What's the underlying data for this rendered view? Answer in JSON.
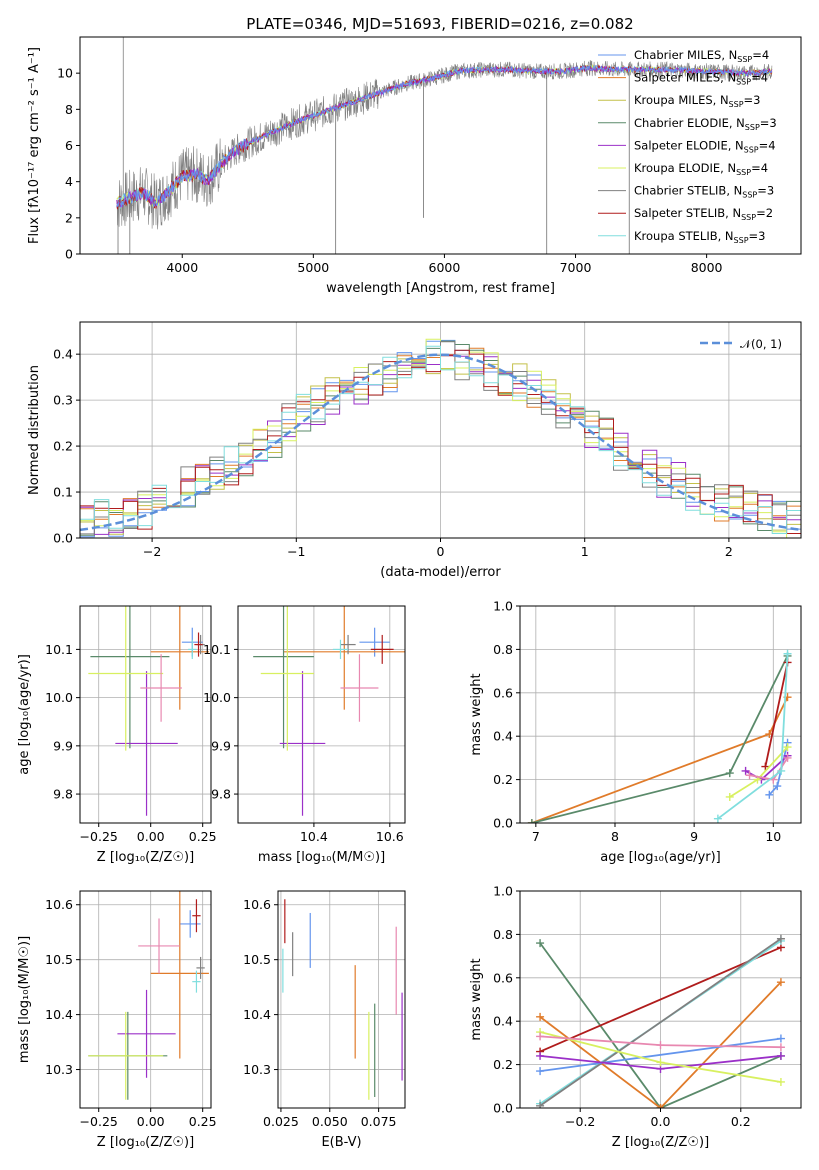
{
  "figure_title": "PLATE=0346, MJD=51693, FIBERID=0216, z=0.082",
  "colors": {
    "Chabrier MILES": "#6495ed",
    "Salpeter MILES": "#e07b2a",
    "Kroupa MILES": "#c4c04a",
    "Chabrier ELODIE": "#5a8a6a",
    "Salpeter ELODIE": "#9b30c8",
    "Kroupa ELODIE": "#d8f060",
    "Chabrier STELIB": "#808080",
    "Salpeter STELIB": "#b01c1c",
    "Kroupa STELIB": "#80dede",
    "data": "#808080",
    "pink": "#e888b0",
    "normal": "#5b8fd9"
  },
  "chart_data": [
    {
      "id": "spectrum",
      "type": "line",
      "title": "PLATE=0346, MJD=51693, FIBERID=0216, z=0.082",
      "xlabel": "wavelength [Angstrom, rest frame]",
      "ylabel": "Flux [fλ10⁻¹⁷ erg cm⁻² s⁻¹ A⁻¹]",
      "xlim": [
        3220,
        8720
      ],
      "ylim": [
        0,
        12
      ],
      "xticks": [
        "4000",
        "5000",
        "6000",
        "7000",
        "8000"
      ],
      "yticks": [
        "0",
        "2",
        "4",
        "6",
        "8",
        "10"
      ],
      "continuum": {
        "x": [
          3500,
          3600,
          3700,
          3800,
          3900,
          4000,
          4100,
          4200,
          4300,
          4400,
          4500,
          4700,
          4900,
          5100,
          5300,
          5500,
          5700,
          5900,
          6100,
          6300,
          6500,
          6700,
          6900,
          7100,
          7300,
          7450,
          7700,
          8000,
          8300,
          8500
        ],
        "y": [
          2.8,
          3.1,
          3.4,
          2.8,
          3.5,
          4.3,
          4.4,
          4.1,
          5.0,
          5.7,
          6.1,
          6.8,
          7.4,
          7.9,
          8.4,
          8.9,
          9.4,
          9.7,
          10.1,
          10.2,
          10.2,
          10.1,
          10.1,
          10.3,
          10.2,
          10.2,
          10.2,
          10.1,
          10.0,
          10.1
        ]
      },
      "legend": [
        {
          "name": "Chabrier MILES",
          "nssp": "4"
        },
        {
          "name": "Salpeter MILES",
          "nssp": "4"
        },
        {
          "name": "Kroupa MILES",
          "nssp": "3"
        },
        {
          "name": "Chabrier ELODIE",
          "nssp": "3"
        },
        {
          "name": "Salpeter ELODIE",
          "nssp": "4"
        },
        {
          "name": "Kroupa ELODIE",
          "nssp": "4"
        },
        {
          "name": "Chabrier STELIB",
          "nssp": "3"
        },
        {
          "name": "Salpeter STELIB",
          "nssp": "2"
        },
        {
          "name": "Kroupa STELIB",
          "nssp": "3"
        }
      ],
      "legend_label_suffix": ", N",
      "legend_label_sub": "SSP",
      "legend_label_eq": "=",
      "legend_placement": "upper-right"
    },
    {
      "id": "residuals",
      "type": "histogram",
      "xlabel": "(data-model)/error",
      "ylabel": "Normed distribution",
      "xlim": [
        -2.5,
        2.5
      ],
      "ylim": [
        0,
        0.47
      ],
      "xticks": [
        "−2",
        "−1",
        "0",
        "1",
        "2"
      ],
      "yticks": [
        "0.0",
        "0.1",
        "0.2",
        "0.3",
        "0.4"
      ],
      "bin_width": 0.1,
      "envelope": [
        0.03,
        0.04,
        0.04,
        0.05,
        0.06,
        0.07,
        0.09,
        0.11,
        0.12,
        0.14,
        0.16,
        0.18,
        0.21,
        0.22,
        0.25,
        0.27,
        0.29,
        0.31,
        0.32,
        0.33,
        0.35,
        0.36,
        0.38,
        0.39,
        0.4,
        0.39,
        0.38,
        0.37,
        0.36,
        0.35,
        0.34,
        0.32,
        0.3,
        0.28,
        0.26,
        0.24,
        0.22,
        0.19,
        0.17,
        0.15,
        0.13,
        0.12,
        0.1,
        0.09,
        0.08,
        0.07,
        0.06,
        0.05,
        0.04,
        0.035
      ],
      "gaussian_label": "𝒩(0, 1)",
      "grid": true
    },
    {
      "id": "age_vs_Z",
      "type": "errorbar",
      "xlabel": "Z [log₁₀(Z/Z☉)]",
      "ylabel": "age  [log₁₀(age/yr)]",
      "xlim": [
        -0.34,
        0.29
      ],
      "ylim": [
        9.74,
        10.19
      ],
      "xticks": [
        "−0.25",
        "0.00",
        "0.25"
      ],
      "yticks": [
        "9.8",
        "9.9",
        "10.0",
        "10.1"
      ],
      "points": [
        {
          "c": "Chabrier MILES",
          "x": 0.2,
          "xe": 0.05,
          "y": 10.115,
          "ye": 0.03
        },
        {
          "c": "Salpeter MILES",
          "x": 0.14,
          "xe": 0.14,
          "y": 10.095,
          "ye": 0.12
        },
        {
          "c": "Chabrier ELODIE",
          "x": -0.1,
          "xe": 0.19,
          "y": 10.085,
          "ye": 0.19
        },
        {
          "c": "Salpeter ELODIE",
          "x": -0.02,
          "xe": 0.15,
          "y": 9.905,
          "ye": 0.15
        },
        {
          "c": "Kroupa ELODIE",
          "x": -0.12,
          "xe": 0.18,
          "y": 10.05,
          "ye": 0.16
        },
        {
          "c": "Chabrier STELIB",
          "x": 0.24,
          "xe": 0.02,
          "y": 10.11,
          "ye": 0.02
        },
        {
          "c": "Salpeter STELIB",
          "x": 0.23,
          "xe": 0.02,
          "y": 10.11,
          "ye": 0.025
        },
        {
          "c": "Kroupa STELIB",
          "x": 0.2,
          "xe": 0.02,
          "y": 10.1,
          "ye": 0.02
        },
        {
          "c": "pink",
          "x": 0.05,
          "xe": 0.1,
          "y": 10.02,
          "ye": 0.07
        }
      ]
    },
    {
      "id": "age_vs_mass",
      "type": "errorbar",
      "xlabel": "mass [log₁₀(M/M☉)]",
      "ylabel": "",
      "xlim": [
        10.2,
        10.64
      ],
      "ylim": [
        9.74,
        10.19
      ],
      "xticks": [
        "10.4",
        "10.6"
      ],
      "yticks": [
        "9.8",
        "9.9",
        "10.0",
        "10.1"
      ],
      "points": [
        {
          "c": "Chabrier MILES",
          "x": 10.56,
          "xe": 0.04,
          "y": 10.115,
          "ye": 0.03
        },
        {
          "c": "Salpeter MILES",
          "x": 10.48,
          "xe": 0.16,
          "y": 10.095,
          "ye": 0.12
        },
        {
          "c": "Chabrier ELODIE",
          "x": 10.32,
          "xe": 0.08,
          "y": 10.085,
          "ye": 0.19
        },
        {
          "c": "Salpeter ELODIE",
          "x": 10.37,
          "xe": 0.06,
          "y": 9.905,
          "ye": 0.15
        },
        {
          "c": "Kroupa ELODIE",
          "x": 10.33,
          "xe": 0.07,
          "y": 10.05,
          "ye": 0.16
        },
        {
          "c": "Chabrier STELIB",
          "x": 10.49,
          "xe": 0.02,
          "y": 10.11,
          "ye": 0.02
        },
        {
          "c": "Salpeter STELIB",
          "x": 10.58,
          "xe": 0.03,
          "y": 10.1,
          "ye": 0.03
        },
        {
          "c": "Kroupa STELIB",
          "x": 10.47,
          "xe": 0.02,
          "y": 10.1,
          "ye": 0.02
        },
        {
          "c": "pink",
          "x": 10.52,
          "xe": 0.05,
          "y": 10.02,
          "ye": 0.07
        }
      ]
    },
    {
      "id": "weight_vs_age",
      "type": "line",
      "xlabel": "age  [log₁₀(age/yr)]",
      "ylabel": "mass weight",
      "xlim": [
        6.8,
        10.35
      ],
      "ylim": [
        0,
        1
      ],
      "xticks": [
        "7",
        "8",
        "9",
        "10"
      ],
      "yticks": [
        "0.0",
        "0.2",
        "0.4",
        "0.6",
        "0.8",
        "1.0"
      ],
      "series": [
        {
          "c": "Salpeter MILES",
          "x": [
            6.95,
            9.95,
            10.18
          ],
          "y": [
            0.0,
            0.41,
            0.58
          ]
        },
        {
          "c": "Chabrier ELODIE",
          "x": [
            6.95,
            9.45,
            10.18
          ],
          "y": [
            0.0,
            0.23,
            0.77
          ]
        },
        {
          "c": "Salpeter STELIB",
          "x": [
            9.9,
            10.18
          ],
          "y": [
            0.26,
            0.74
          ]
        },
        {
          "c": "Chabrier MILES",
          "x": [
            9.95,
            10.05,
            10.18
          ],
          "y": [
            0.13,
            0.17,
            0.37
          ]
        },
        {
          "c": "Salpeter ELODIE",
          "x": [
            9.65,
            9.85,
            10.18
          ],
          "y": [
            0.24,
            0.2,
            0.31
          ]
        },
        {
          "c": "Kroupa ELODIE",
          "x": [
            9.45,
            9.8,
            10.18
          ],
          "y": [
            0.12,
            0.2,
            0.35
          ]
        },
        {
          "c": "pink",
          "x": [
            9.7,
            10.0,
            10.18
          ],
          "y": [
            0.22,
            0.2,
            0.3
          ]
        },
        {
          "c": "Kroupa STELIB",
          "x": [
            9.3,
            10.1,
            10.18
          ],
          "y": [
            0.02,
            0.24,
            0.78
          ]
        }
      ]
    },
    {
      "id": "mass_vs_Z",
      "type": "errorbar",
      "xlabel": "Z [log₁₀(Z/Z☉)]",
      "ylabel": "mass [log₁₀(M/M☉)]",
      "xlim": [
        -0.34,
        0.29
      ],
      "ylim": [
        10.23,
        10.625
      ],
      "xticks": [
        "−0.25",
        "0.00",
        "0.25"
      ],
      "yticks": [
        "10.3",
        "10.4",
        "10.5",
        "10.6"
      ],
      "points": [
        {
          "c": "Chabrier MILES",
          "x": 0.19,
          "xe": 0.05,
          "y": 10.565,
          "ye": 0.025
        },
        {
          "c": "Salpeter MILES",
          "x": 0.14,
          "xe": 0.14,
          "y": 10.475,
          "ye": 0.155
        },
        {
          "c": "Chabrier ELODIE",
          "x": -0.11,
          "xe": 0.19,
          "y": 10.325,
          "ye": 0.08
        },
        {
          "c": "Salpeter ELODIE",
          "x": -0.02,
          "xe": 0.14,
          "y": 10.365,
          "ye": 0.08
        },
        {
          "c": "Kroupa ELODIE",
          "x": -0.12,
          "xe": 0.18,
          "y": 10.325,
          "ye": 0.08
        },
        {
          "c": "Chabrier STELIB",
          "x": 0.24,
          "xe": 0.02,
          "y": 10.485,
          "ye": 0.02
        },
        {
          "c": "Salpeter STELIB",
          "x": 0.22,
          "xe": 0.02,
          "y": 10.58,
          "ye": 0.03
        },
        {
          "c": "Kroupa STELIB",
          "x": 0.22,
          "xe": 0.02,
          "y": 10.46,
          "ye": 0.02
        },
        {
          "c": "pink",
          "x": 0.04,
          "xe": 0.1,
          "y": 10.525,
          "ye": 0.05
        }
      ]
    },
    {
      "id": "mass_vs_ebv",
      "type": "errorbar",
      "xlabel": "E(B-V)",
      "ylabel": "",
      "xlim": [
        0.0235,
        0.0885
      ],
      "ylim": [
        10.23,
        10.625
      ],
      "xticks": [
        "0.025",
        "0.050",
        "0.075"
      ],
      "yticks": [
        "10.3",
        "10.4",
        "10.5",
        "10.6"
      ],
      "points": [
        {
          "c": "Chabrier MILES",
          "x": 0.04,
          "xe": 0.0,
          "y": 10.535,
          "ye": 0.05
        },
        {
          "c": "Salpeter MILES",
          "x": 0.063,
          "xe": 0.0,
          "y": 10.405,
          "ye": 0.085
        },
        {
          "c": "Chabrier ELODIE",
          "x": 0.073,
          "xe": 0.0,
          "y": 10.335,
          "ye": 0.085
        },
        {
          "c": "Salpeter ELODIE",
          "x": 0.087,
          "xe": 0.0,
          "y": 10.36,
          "ye": 0.08
        },
        {
          "c": "Kroupa ELODIE",
          "x": 0.07,
          "xe": 0.0,
          "y": 10.325,
          "ye": 0.08
        },
        {
          "c": "Chabrier STELIB",
          "x": 0.031,
          "xe": 0.0,
          "y": 10.51,
          "ye": 0.04
        },
        {
          "c": "Salpeter STELIB",
          "x": 0.027,
          "xe": 0.0,
          "y": 10.57,
          "ye": 0.04
        },
        {
          "c": "Kroupa STELIB",
          "x": 0.026,
          "xe": 0.0,
          "y": 10.48,
          "ye": 0.04
        },
        {
          "c": "pink",
          "x": 0.084,
          "xe": 0.0,
          "y": 10.48,
          "ye": 0.08
        }
      ]
    },
    {
      "id": "weight_vs_Z",
      "type": "line",
      "xlabel": "Z [log₁₀(Z/Z☉)]",
      "ylabel": "mass weight",
      "xlim": [
        -0.35,
        0.35
      ],
      "ylim": [
        0,
        1
      ],
      "xticks": [
        "−0.2",
        "0.0",
        "0.2"
      ],
      "yticks": [
        "0.0",
        "0.2",
        "0.4",
        "0.6",
        "0.8",
        "1.0"
      ],
      "series": [
        {
          "c": "Chabrier ELODIE",
          "x": [
            -0.3,
            0.0,
            0.3
          ],
          "y": [
            0.76,
            0.0,
            0.24
          ]
        },
        {
          "c": "Salpeter MILES",
          "x": [
            -0.3,
            0.0,
            0.3
          ],
          "y": [
            0.42,
            0.0,
            0.58
          ]
        },
        {
          "c": "Salpeter STELIB",
          "x": [
            -0.3,
            0.3
          ],
          "y": [
            0.26,
            0.74
          ]
        },
        {
          "c": "Kroupa STELIB",
          "x": [
            -0.3,
            0.3
          ],
          "y": [
            0.02,
            0.77
          ]
        },
        {
          "c": "Chabrier STELIB",
          "x": [
            -0.3,
            0.3
          ],
          "y": [
            0.01,
            0.78
          ]
        },
        {
          "c": "Chabrier MILES",
          "x": [
            -0.3,
            0.3
          ],
          "y": [
            0.17,
            0.32
          ]
        },
        {
          "c": "Salpeter ELODIE",
          "x": [
            -0.3,
            0.0,
            0.3
          ],
          "y": [
            0.24,
            0.18,
            0.24
          ]
        },
        {
          "c": "Kroupa ELODIE",
          "x": [
            -0.3,
            0.0,
            0.3
          ],
          "y": [
            0.35,
            0.21,
            0.12
          ]
        },
        {
          "c": "pink",
          "x": [
            -0.3,
            0.0,
            0.3
          ],
          "y": [
            0.33,
            0.29,
            0.28
          ]
        }
      ]
    }
  ]
}
